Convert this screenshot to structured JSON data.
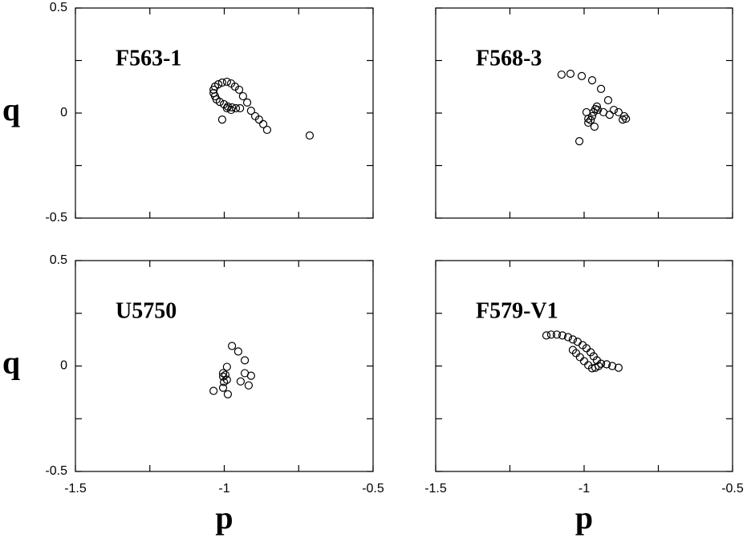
{
  "chart_data": [
    {
      "type": "scatter",
      "title": "F563-1",
      "ylabel": "q",
      "x": [
        -0.991,
        -1.007,
        -1.02,
        -1.031,
        -1.036,
        -1.036,
        -1.031,
        -1.026,
        -1.015,
        -1.001,
        -0.988,
        -0.974,
        -0.961,
        -0.947,
        -0.977,
        -0.964,
        -0.95,
        -0.937,
        -0.923,
        -0.91,
        -0.896,
        -0.883,
        -0.869,
        -0.856,
        -0.713,
        -1.007,
        -0.991,
        -0.977
      ],
      "values": [
        0.149,
        0.145,
        0.137,
        0.126,
        0.111,
        0.095,
        0.08,
        0.065,
        0.053,
        0.042,
        0.031,
        0.027,
        0.023,
        0.023,
        0.141,
        0.126,
        0.111,
        0.08,
        0.05,
        0.011,
        -0.015,
        -0.031,
        -0.053,
        -0.08,
        -0.107,
        -0.031,
        0.023,
        0.015
      ],
      "xlim": [
        -1.5,
        -0.5
      ],
      "ylim": [
        -0.5,
        0.5
      ],
      "xticks": [
        -1.5,
        -1,
        -0.5
      ],
      "yticks": [
        -0.5,
        0,
        0.5
      ],
      "xminor": [
        -1.25,
        -0.75
      ],
      "yminor": [
        -0.25,
        0.25
      ],
      "xtick_labels": false,
      "ytick_labels": true,
      "color": "#000000"
    },
    {
      "type": "scatter",
      "title": "F568-3",
      "x": [
        -1.076,
        -1.046,
        -1.008,
        -0.973,
        -0.943,
        -0.919,
        -0.9,
        -0.884,
        -0.865,
        -0.87,
        -0.859,
        -0.957,
        -0.962,
        -0.968,
        -0.973,
        -0.978,
        -0.986,
        -0.992,
        -0.986,
        -1.016,
        -0.965,
        -0.954,
        -0.935,
        -0.914
      ],
      "values": [
        0.183,
        0.187,
        0.176,
        0.156,
        0.115,
        0.061,
        0.015,
        0.004,
        -0.015,
        -0.031,
        -0.027,
        0.031,
        0.019,
        0.004,
        -0.015,
        -0.034,
        -0.027,
        0.004,
        -0.046,
        -0.134,
        -0.065,
        0.015,
        0.004,
        -0.008
      ],
      "xlim": [
        -1.5,
        -0.5
      ],
      "ylim": [
        -0.5,
        0.5
      ],
      "xticks": [
        -1.5,
        -1,
        -0.5
      ],
      "yticks": [
        -0.5,
        0,
        0.5
      ],
      "xminor": [
        -1.25,
        -0.75
      ],
      "yminor": [
        -0.25,
        0.25
      ],
      "xtick_labels": false,
      "ytick_labels": false,
      "color": "#000000"
    },
    {
      "type": "scatter",
      "title": "U5750",
      "xlabel": "p",
      "ylabel": "q",
      "x": [
        -0.974,
        -0.953,
        -0.931,
        -0.931,
        -0.91,
        -0.945,
        -0.918,
        -0.991,
        -1.004,
        -1.004,
        -1.001,
        -0.991,
        -1.004,
        -1.036,
        -0.988,
        -0.996
      ],
      "values": [
        0.095,
        0.069,
        0.027,
        -0.034,
        -0.046,
        -0.073,
        -0.092,
        -0.004,
        -0.034,
        -0.05,
        -0.076,
        -0.065,
        -0.103,
        -0.118,
        -0.134,
        -0.042
      ],
      "xlim": [
        -1.5,
        -0.5
      ],
      "ylim": [
        -0.5,
        0.5
      ],
      "xticks": [
        -1.5,
        -1,
        -0.5
      ],
      "yticks": [
        -0.5,
        0,
        0.5
      ],
      "xminor": [
        -1.25,
        -0.75
      ],
      "yminor": [
        -0.25,
        0.25
      ],
      "xtick_labels": true,
      "ytick_labels": true,
      "color": "#000000"
    },
    {
      "type": "scatter",
      "title": "F579-V1",
      "xlabel": "p",
      "x": [
        -1.127,
        -1.111,
        -1.092,
        -1.073,
        -1.054,
        -1.038,
        -1.022,
        -1.005,
        -0.992,
        -0.978,
        -0.968,
        -0.957,
        -0.943,
        -0.924,
        -0.905,
        -0.884,
        -1.038,
        -1.027,
        -1.014,
        -1.0,
        -0.986,
        -0.973,
        -0.962,
        -0.951
      ],
      "values": [
        0.145,
        0.149,
        0.149,
        0.145,
        0.137,
        0.126,
        0.115,
        0.099,
        0.084,
        0.065,
        0.046,
        0.027,
        0.011,
        0.008,
        0,
        -0.008,
        0.076,
        0.061,
        0.042,
        0.023,
        0.004,
        -0.011,
        -0.008,
        0
      ],
      "xlim": [
        -1.5,
        -0.5
      ],
      "ylim": [
        -0.5,
        0.5
      ],
      "xticks": [
        -1.5,
        -1,
        -0.5
      ],
      "yticks": [
        -0.5,
        0,
        0.5
      ],
      "xminor": [
        -1.25,
        -0.75
      ],
      "yminor": [
        -0.25,
        0.25
      ],
      "xtick_labels": true,
      "ytick_labels": false,
      "color": "#000000"
    }
  ]
}
